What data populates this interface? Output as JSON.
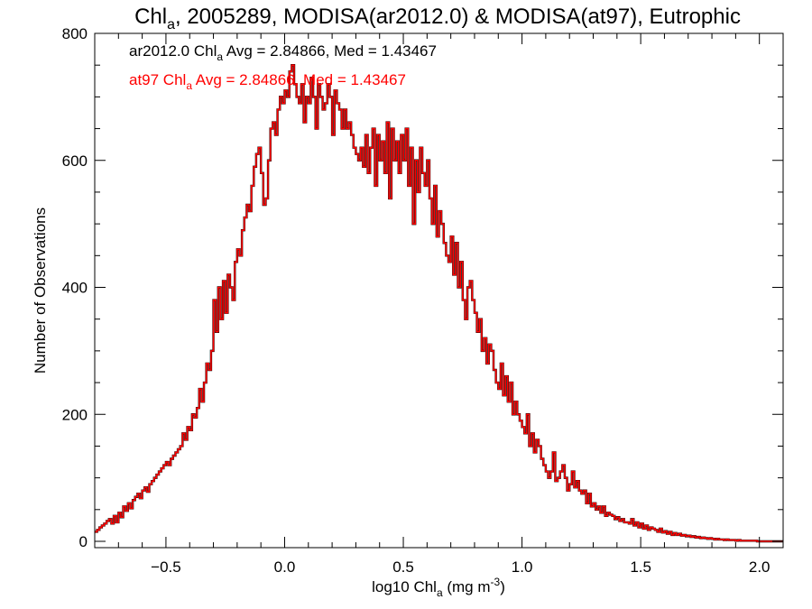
{
  "chart_data": {
    "type": "histogram",
    "title": {
      "prefix": "Chl",
      "sub": "a",
      "rest": ", 2005289, MODISA(ar2012.0) & MODISA(at97), Eutrophic"
    },
    "xlabel": {
      "prefix": "log10 Chl",
      "sub": "a",
      "mid": " (mg m",
      "sup": "-3",
      "end": ")"
    },
    "ylabel": "Number of Observations",
    "xlim": [
      -0.8,
      2.1
    ],
    "ylim": [
      0,
      800
    ],
    "x_ticks": [
      {
        "value": -0.5,
        "label": "−0.5"
      },
      {
        "value": 0.0,
        "label": "0.0"
      },
      {
        "value": 0.5,
        "label": "0.5"
      },
      {
        "value": 1.0,
        "label": "1.0"
      },
      {
        "value": 1.5,
        "label": "1.5"
      },
      {
        "value": 2.0,
        "label": "2.0"
      }
    ],
    "y_ticks": [
      {
        "value": 0,
        "label": "0"
      },
      {
        "value": 200,
        "label": "200"
      },
      {
        "value": 400,
        "label": "400"
      },
      {
        "value": 600,
        "label": "600"
      },
      {
        "value": 800,
        "label": "800"
      }
    ],
    "annotations": [
      {
        "prefix": "ar2012.0 Chl",
        "sub": "a",
        "rest": " Avg = 2.84866, Med = 1.43467",
        "color": "#000000"
      },
      {
        "prefix": "at97 Chl",
        "sub": "a",
        "rest": " Avg = 2.84866, Med = 1.43467",
        "color": "#ff0000"
      }
    ],
    "bin_width": 0.01,
    "x_start": -0.8,
    "series": [
      {
        "name": "ar2012.0",
        "color": "#000000",
        "values": [
          15,
          18,
          22,
          25,
          28,
          32,
          35,
          28,
          40,
          30,
          45,
          38,
          55,
          48,
          60,
          52,
          65,
          70,
          75,
          68,
          80,
          85,
          78,
          90,
          95,
          100,
          105,
          110,
          115,
          120,
          125,
          120,
          130,
          135,
          140,
          145,
          150,
          170,
          160,
          180,
          175,
          200,
          195,
          210,
          240,
          220,
          250,
          280,
          270,
          300,
          380,
          330,
          400,
          350,
          410,
          360,
          420,
          400,
          380,
          440,
          460,
          450,
          490,
          510,
          530,
          520,
          560,
          590,
          610,
          620,
          580,
          530,
          540,
          600,
          650,
          660,
          640,
          680,
          700,
          690,
          710,
          700,
          740,
          750,
          720,
          700,
          690,
          720,
          660,
          700,
          690,
          730,
          700,
          650,
          720,
          700,
          680,
          690,
          720,
          700,
          640,
          710,
          690,
          680,
          650,
          680,
          650,
          660,
          640,
          620,
          610,
          600,
          620,
          590,
          640,
          580,
          620,
          650,
          560,
          640,
          600,
          630,
          580,
          660,
          540,
          650,
          600,
          630,
          580,
          640,
          600,
          650,
          560,
          620,
          500,
          600,
          550,
          620,
          580,
          560,
          600,
          540,
          500,
          560,
          480,
          520,
          500,
          470,
          450,
          440,
          480,
          420,
          470,
          400,
          440,
          380,
          350,
          400,
          410,
          380,
          360,
          330,
          350,
          300,
          320,
          280,
          310,
          300,
          270,
          250,
          240,
          280,
          230,
          260,
          220,
          250,
          200,
          220,
          200,
          190,
          180,
          170,
          200,
          150,
          170,
          140,
          160,
          150,
          130,
          120,
          110,
          100,
          110,
          140,
          95,
          100,
          110,
          120,
          100,
          80,
          90,
          110,
          85,
          95,
          80,
          75,
          80,
          60,
          75,
          55,
          60,
          50,
          55,
          45,
          55,
          40,
          45,
          42,
          40,
          35,
          38,
          32,
          35,
          30,
          30,
          28,
          35,
          25,
          30,
          22,
          28,
          20,
          25,
          18,
          22,
          20,
          18,
          15,
          20,
          14,
          16,
          12,
          15,
          10,
          13,
          10,
          12,
          9,
          10,
          8,
          9,
          7,
          8,
          6,
          7,
          5,
          6,
          5,
          4,
          5,
          4,
          3,
          4,
          3,
          3,
          2,
          3,
          2,
          2,
          2,
          1,
          2,
          1,
          1,
          1,
          1,
          1,
          1,
          1,
          0,
          0,
          0,
          0,
          0,
          0,
          0,
          0,
          0,
          0,
          0,
          0,
          0,
          0
        ]
      },
      {
        "name": "at97",
        "color": "#ff0000",
        "values": [
          15,
          18,
          22,
          25,
          28,
          32,
          35,
          28,
          40,
          30,
          45,
          38,
          55,
          48,
          60,
          52,
          65,
          70,
          75,
          68,
          80,
          85,
          78,
          90,
          95,
          100,
          105,
          110,
          115,
          120,
          125,
          120,
          130,
          135,
          140,
          145,
          150,
          170,
          160,
          180,
          175,
          200,
          195,
          210,
          240,
          220,
          250,
          280,
          270,
          300,
          380,
          330,
          400,
          350,
          410,
          360,
          420,
          400,
          380,
          440,
          460,
          450,
          490,
          510,
          530,
          520,
          560,
          590,
          610,
          620,
          580,
          530,
          540,
          600,
          650,
          660,
          640,
          680,
          700,
          690,
          710,
          700,
          740,
          750,
          720,
          700,
          690,
          720,
          660,
          700,
          690,
          730,
          700,
          650,
          720,
          700,
          680,
          690,
          720,
          700,
          640,
          710,
          690,
          680,
          650,
          680,
          650,
          660,
          640,
          620,
          610,
          600,
          620,
          590,
          640,
          580,
          620,
          650,
          560,
          640,
          600,
          630,
          580,
          660,
          540,
          650,
          600,
          630,
          580,
          640,
          600,
          650,
          560,
          620,
          500,
          600,
          550,
          620,
          580,
          560,
          600,
          540,
          500,
          560,
          480,
          520,
          500,
          470,
          450,
          440,
          480,
          420,
          470,
          400,
          440,
          380,
          350,
          400,
          410,
          380,
          360,
          330,
          350,
          300,
          320,
          280,
          310,
          300,
          270,
          250,
          240,
          280,
          230,
          260,
          220,
          250,
          200,
          220,
          200,
          190,
          180,
          170,
          200,
          150,
          170,
          140,
          160,
          150,
          130,
          120,
          110,
          100,
          110,
          140,
          95,
          100,
          110,
          120,
          100,
          80,
          90,
          110,
          85,
          95,
          80,
          75,
          80,
          60,
          75,
          55,
          60,
          50,
          55,
          45,
          55,
          40,
          45,
          42,
          40,
          35,
          38,
          32,
          35,
          30,
          30,
          28,
          35,
          25,
          30,
          22,
          28,
          20,
          25,
          18,
          22,
          20,
          18,
          15,
          20,
          14,
          16,
          12,
          15,
          10,
          13,
          10,
          12,
          9,
          10,
          8,
          9,
          7,
          8,
          6,
          7,
          5,
          6,
          5,
          4,
          5,
          4,
          3,
          4,
          3,
          3,
          2,
          3,
          2,
          2,
          2,
          1,
          2,
          1,
          1,
          1,
          1,
          1,
          1,
          1,
          0,
          0,
          0,
          0,
          0,
          0,
          0,
          0,
          0,
          0,
          0,
          0,
          0,
          0
        ]
      }
    ]
  }
}
